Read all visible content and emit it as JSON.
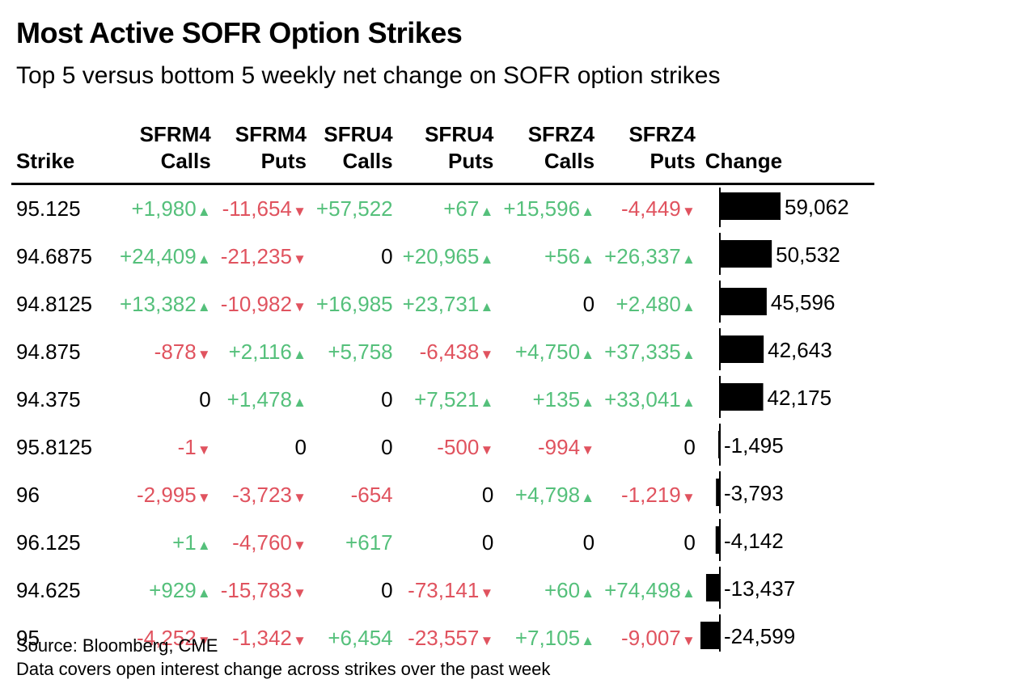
{
  "title": "Most Active SOFR Option Strikes",
  "subtitle": "Top 5 versus bottom 5 weekly net change on SOFR option strikes",
  "source": "Source: Bloomberg, CME",
  "note": "Data covers open interest change across strikes over the past week",
  "colors": {
    "positive": "#55c07b",
    "negative": "#e0535f",
    "bar": "#000000"
  },
  "columns": {
    "strike": "Strike",
    "m4c": [
      "SFRM4",
      "Calls"
    ],
    "m4p": [
      "SFRM4",
      "Puts"
    ],
    "u4c": [
      "SFRU4",
      "Calls"
    ],
    "u4p": [
      "SFRU4",
      "Puts"
    ],
    "z4c": [
      "SFRZ4",
      "Calls"
    ],
    "z4p": [
      "SFRZ4",
      "Puts"
    ],
    "change": "Change"
  },
  "chart_data": {
    "type": "table",
    "rows": [
      {
        "strike": "95.125",
        "cells": [
          {
            "t": "+1,980",
            "a": "up"
          },
          {
            "t": "-11,654",
            "a": "down"
          },
          {
            "t": "+57,522",
            "a": ""
          },
          {
            "t": "+67",
            "a": "up"
          },
          {
            "t": "+15,596",
            "a": "up"
          },
          {
            "t": "-4,449",
            "a": "down"
          }
        ],
        "change": 59062,
        "change_label": "59,062"
      },
      {
        "strike": "94.6875",
        "cells": [
          {
            "t": "+24,409",
            "a": "up"
          },
          {
            "t": "-21,235",
            "a": "down"
          },
          {
            "t": "0",
            "a": ""
          },
          {
            "t": "+20,965",
            "a": "up"
          },
          {
            "t": "+56",
            "a": "up"
          },
          {
            "t": "+26,337",
            "a": "up"
          }
        ],
        "change": 50532,
        "change_label": "50,532"
      },
      {
        "strike": "94.8125",
        "cells": [
          {
            "t": "+13,382",
            "a": "up"
          },
          {
            "t": "-10,982",
            "a": "down"
          },
          {
            "t": "+16,985",
            "a": ""
          },
          {
            "t": "+23,731",
            "a": "up"
          },
          {
            "t": "0",
            "a": ""
          },
          {
            "t": "+2,480",
            "a": "up"
          }
        ],
        "change": 45596,
        "change_label": "45,596"
      },
      {
        "strike": "94.875",
        "cells": [
          {
            "t": "-878",
            "a": "down"
          },
          {
            "t": "+2,116",
            "a": "up"
          },
          {
            "t": "+5,758",
            "a": ""
          },
          {
            "t": "-6,438",
            "a": "down"
          },
          {
            "t": "+4,750",
            "a": "up"
          },
          {
            "t": "+37,335",
            "a": "up"
          }
        ],
        "change": 42643,
        "change_label": "42,643"
      },
      {
        "strike": "94.375",
        "cells": [
          {
            "t": "0",
            "a": ""
          },
          {
            "t": "+1,478",
            "a": "up"
          },
          {
            "t": "0",
            "a": ""
          },
          {
            "t": "+7,521",
            "a": "up"
          },
          {
            "t": "+135",
            "a": "up"
          },
          {
            "t": "+33,041",
            "a": "up"
          }
        ],
        "change": 42175,
        "change_label": "42,175"
      },
      {
        "strike": "95.8125",
        "cells": [
          {
            "t": "-1",
            "a": "down"
          },
          {
            "t": "0",
            "a": ""
          },
          {
            "t": "0",
            "a": ""
          },
          {
            "t": "-500",
            "a": "down"
          },
          {
            "t": "-994",
            "a": "down"
          },
          {
            "t": "0",
            "a": ""
          }
        ],
        "change": -1495,
        "change_label": "-1,495"
      },
      {
        "strike": "96",
        "cells": [
          {
            "t": "-2,995",
            "a": "down"
          },
          {
            "t": "-3,723",
            "a": "down"
          },
          {
            "t": "-654",
            "a": ""
          },
          {
            "t": "0",
            "a": ""
          },
          {
            "t": "+4,798",
            "a": "up"
          },
          {
            "t": "-1,219",
            "a": "down"
          }
        ],
        "change": -3793,
        "change_label": "-3,793"
      },
      {
        "strike": "96.125",
        "cells": [
          {
            "t": "+1",
            "a": "up"
          },
          {
            "t": "-4,760",
            "a": "down"
          },
          {
            "t": "+617",
            "a": ""
          },
          {
            "t": "0",
            "a": ""
          },
          {
            "t": "0",
            "a": ""
          },
          {
            "t": "0",
            "a": ""
          }
        ],
        "change": -4142,
        "change_label": "-4,142"
      },
      {
        "strike": "94.625",
        "cells": [
          {
            "t": "+929",
            "a": "up"
          },
          {
            "t": "-15,783",
            "a": "down"
          },
          {
            "t": "0",
            "a": ""
          },
          {
            "t": "-73,141",
            "a": "down"
          },
          {
            "t": "+60",
            "a": "up"
          },
          {
            "t": "+74,498",
            "a": "up"
          }
        ],
        "change": -13437,
        "change_label": "-13,437"
      },
      {
        "strike": "95",
        "cells": [
          {
            "t": "-4,252",
            "a": "down"
          },
          {
            "t": "-1,342",
            "a": "down"
          },
          {
            "t": "+6,454",
            "a": ""
          },
          {
            "t": "-23,557",
            "a": "down"
          },
          {
            "t": "+7,105",
            "a": "up"
          },
          {
            "t": "-9,007",
            "a": "down"
          }
        ],
        "change": -24599,
        "change_label": "-24,599"
      }
    ]
  }
}
